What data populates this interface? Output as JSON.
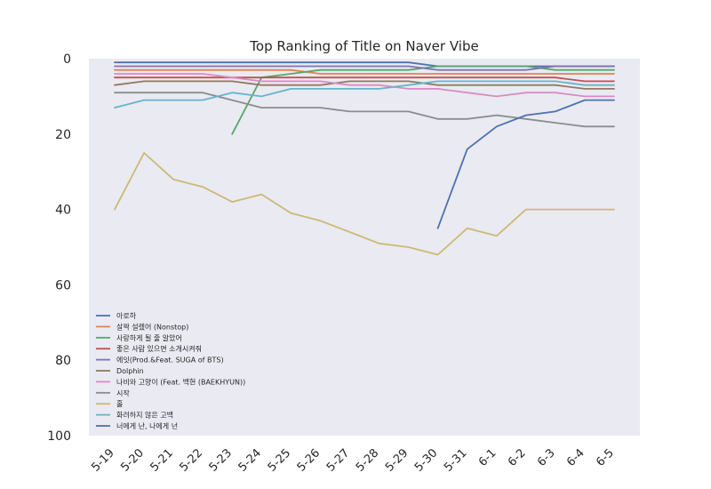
{
  "chart_data": {
    "type": "line",
    "title": "Top Ranking of Title on Naver Vibe",
    "xlabel": "",
    "ylabel": "",
    "x": [
      "5-19",
      "5-20",
      "5-21",
      "5-22",
      "5-23",
      "5-24",
      "5-25",
      "5-26",
      "5-27",
      "5-28",
      "5-29",
      "5-30",
      "5-31",
      "6-1",
      "6-2",
      "6-3",
      "6-4",
      "6-5"
    ],
    "ylim": [
      100,
      0
    ],
    "y_inverted": true,
    "yticks": [
      0,
      20,
      40,
      60,
      80,
      100
    ],
    "grid": false,
    "background": "#eaeaf2",
    "legend_position": "lower-left",
    "series": [
      {
        "name": "아로하",
        "color": "#4c72b0",
        "values": [
          1,
          1,
          1,
          1,
          1,
          1,
          1,
          1,
          1,
          1,
          1,
          2,
          2,
          2,
          2,
          2,
          2,
          2
        ]
      },
      {
        "name": "살짝 설렜어 (Nonstop)",
        "color": "#dd8452",
        "values": [
          3,
          3,
          3,
          3,
          3,
          3,
          3,
          4,
          4,
          4,
          4,
          4,
          4,
          4,
          4,
          4,
          4,
          4
        ]
      },
      {
        "name": "사랑하게 될 줄 알았어",
        "color": "#55a868",
        "values": [
          null,
          null,
          null,
          null,
          20,
          5,
          4,
          3,
          3,
          3,
          3,
          2,
          2,
          2,
          2,
          3,
          3,
          3
        ]
      },
      {
        "name": "좋은 사람 있으면 소개시켜줘",
        "color": "#c44e52",
        "values": [
          5,
          5,
          5,
          5,
          5,
          5,
          5,
          5,
          5,
          5,
          5,
          5,
          5,
          5,
          5,
          5,
          6,
          6
        ]
      },
      {
        "name": "에잇(Prod.&Feat. SUGA of BTS)",
        "color": "#8172b3",
        "values": [
          2,
          2,
          2,
          2,
          2,
          2,
          2,
          2,
          2,
          2,
          2,
          3,
          3,
          3,
          3,
          2,
          2,
          2
        ]
      },
      {
        "name": "Dolphin",
        "color": "#937860",
        "values": [
          7,
          6,
          6,
          6,
          6,
          7,
          7,
          7,
          6,
          6,
          6,
          7,
          7,
          7,
          7,
          7,
          8,
          8
        ]
      },
      {
        "name": "나비와 고양이 (Feat. 백현 (BAEKHYUN))",
        "color": "#da8bc3",
        "values": [
          4,
          4,
          4,
          4,
          5,
          6,
          6,
          6,
          7,
          7,
          8,
          8,
          9,
          10,
          9,
          9,
          10,
          10
        ]
      },
      {
        "name": "시작",
        "color": "#8c8c8c",
        "values": [
          9,
          9,
          9,
          9,
          11,
          13,
          13,
          13,
          14,
          14,
          14,
          16,
          16,
          15,
          16,
          17,
          18,
          18
        ]
      },
      {
        "name": "홀",
        "color": "#ccb974",
        "values": [
          40,
          25,
          32,
          34,
          38,
          36,
          41,
          43,
          46,
          49,
          50,
          52,
          45,
          47,
          40,
          40,
          40,
          40
        ]
      },
      {
        "name": "화려하지 않은 고백",
        "color": "#64b5cd",
        "values": [
          13,
          11,
          11,
          11,
          9,
          10,
          8,
          8,
          8,
          8,
          7,
          6,
          6,
          6,
          6,
          6,
          7,
          7
        ]
      },
      {
        "name": "너에게 난, 나에게 넌",
        "color": "#4c72b0",
        "values": [
          null,
          null,
          null,
          null,
          null,
          null,
          null,
          null,
          null,
          null,
          null,
          45,
          24,
          18,
          15,
          14,
          11,
          11
        ]
      }
    ]
  }
}
